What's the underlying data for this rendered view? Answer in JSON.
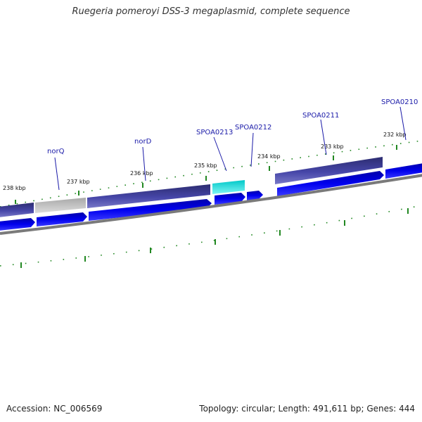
{
  "title": "Ruegeria pomeroyi DSS-3 megaplasmid, complete sequence",
  "footer": {
    "accession": "Accession: NC_006569",
    "summary": "Topology: circular; Length: 491,611 bp; Genes: 444"
  },
  "colors": {
    "cds_forward": "#0000ee",
    "feature_gene": "#3c3ca0",
    "feature_pseudo": "#c4c4c4",
    "feature_misc": "#00e5e5",
    "backbone": "#7a7a7a",
    "ticks": "#228822",
    "gene_label": "#1a1aa8"
  },
  "map": {
    "kbp_labels": [
      "238 kbp",
      "237 kbp",
      "236 kbp",
      "235 kbp",
      "234 kbp",
      "233 kbp",
      "232 kbp"
    ],
    "gene_labels": [
      "norQ",
      "norD",
      "SPOA0213",
      "SPOA0212",
      "SPOA0211",
      "SPOA0210"
    ]
  }
}
